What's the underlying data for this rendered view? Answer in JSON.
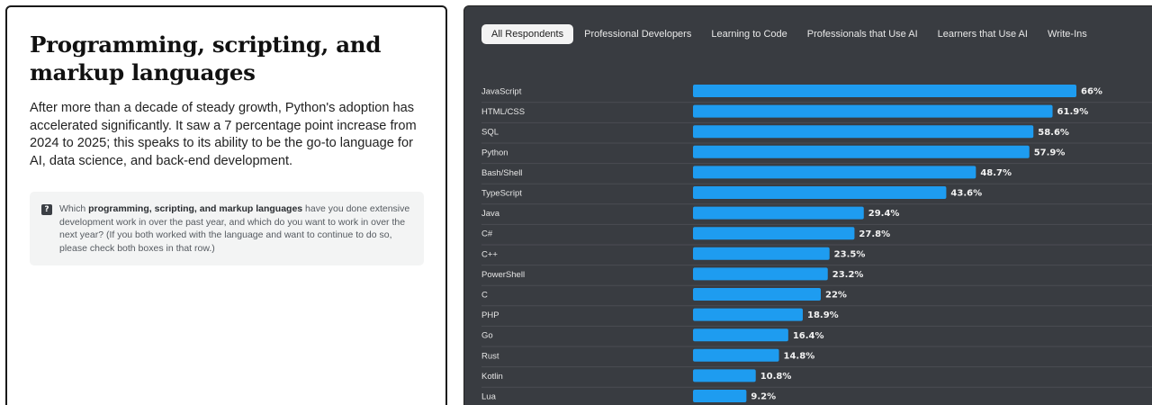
{
  "left": {
    "title": "Programming, scripting, and markup languages",
    "description": "After more than a decade of steady growth, Python's adoption has accelerated significantly. It saw a 7 percentage point increase from 2024 to 2025; this speaks to its ability to be the go-to language for AI, data science, and back-end development.",
    "question": {
      "icon": "question-mark-icon",
      "icon_glyph": "?",
      "prefix": "Which ",
      "bold": "programming, scripting, and markup languages",
      "suffix": " have you done extensive development work in over the past year, and which do you want to work in over the next year? (If you both worked with the language and want to continue to do so, please check both boxes in that row.)"
    }
  },
  "tabs": [
    {
      "label": "All Respondents",
      "active": true
    },
    {
      "label": "Professional Developers",
      "active": false
    },
    {
      "label": "Learning to Code",
      "active": false
    },
    {
      "label": "Professionals that Use AI",
      "active": false
    },
    {
      "label": "Learners that Use AI",
      "active": false
    },
    {
      "label": "Write-Ins",
      "active": false
    }
  ],
  "colors": {
    "bar": "#1e9cf0",
    "panel": "#393c41",
    "separator": "#4a4d52"
  },
  "chart_data": {
    "type": "bar",
    "orientation": "horizontal",
    "categories": [
      "JavaScript",
      "HTML/CSS",
      "SQL",
      "Python",
      "Bash/Shell",
      "TypeScript",
      "Java",
      "C#",
      "C++",
      "PowerShell",
      "C",
      "PHP",
      "Go",
      "Rust",
      "Kotlin",
      "Lua"
    ],
    "values": [
      66,
      61.9,
      58.6,
      57.9,
      48.7,
      43.6,
      29.4,
      27.8,
      23.5,
      23.2,
      22,
      18.9,
      16.4,
      14.8,
      10.8,
      9.2
    ],
    "value_labels": [
      "66%",
      "61.9%",
      "58.6%",
      "57.9%",
      "48.7%",
      "43.6%",
      "29.4%",
      "27.8%",
      "23.5%",
      "23.2%",
      "22%",
      "18.9%",
      "16.4%",
      "14.8%",
      "10.8%",
      "9.2%"
    ],
    "unit": "%",
    "xlim": [
      0,
      66
    ],
    "grid": false,
    "legend": "none",
    "title": "",
    "xlabel": "",
    "ylabel": ""
  }
}
